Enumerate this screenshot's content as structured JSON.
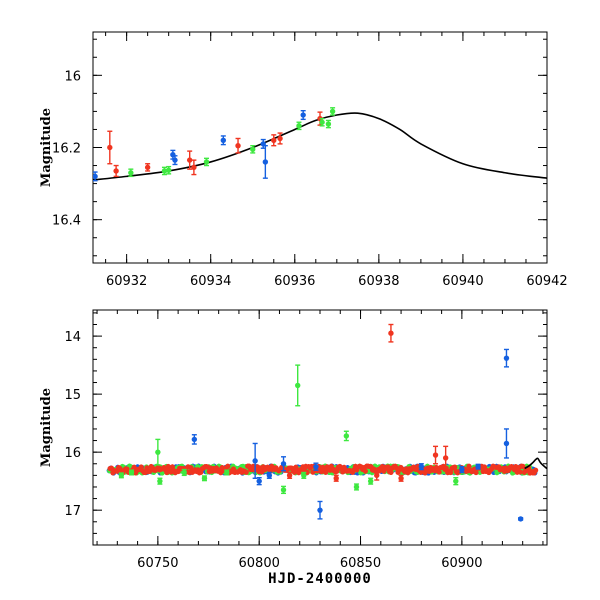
{
  "chart_data": [
    {
      "type": "scatter",
      "title": "",
      "xlabel": "",
      "ylabel": "Magnitude",
      "xlim": [
        60931.2,
        60942
      ],
      "ylim": [
        16.52,
        15.88
      ],
      "y_inverted": true,
      "xticks": [
        60932,
        60934,
        60936,
        60938,
        60940,
        60942
      ],
      "xtick_labels": [
        "60932",
        "60934",
        "60936",
        "60938",
        "60940",
        "60942"
      ],
      "yticks": [
        16,
        16.2,
        16.4
      ],
      "ytick_labels": [
        "16",
        "16.2",
        "16.4"
      ],
      "grid": false,
      "series": [
        {
          "color": "#1560e0",
          "points": [
            {
              "x": 60931.25,
              "y": 16.28,
              "err": 0.012
            },
            {
              "x": 60933.1,
              "y": 16.22,
              "err": 0.012
            },
            {
              "x": 60933.15,
              "y": 16.235,
              "err": 0.012
            },
            {
              "x": 60934.3,
              "y": 16.18,
              "err": 0.012
            },
            {
              "x": 60935.25,
              "y": 16.19,
              "err": 0.012
            },
            {
              "x": 60935.3,
              "y": 16.24,
              "err": 0.045
            },
            {
              "x": 60936.2,
              "y": 16.11,
              "err": 0.012
            }
          ]
        },
        {
          "color": "#f03520",
          "points": [
            {
              "x": 60931.6,
              "y": 16.2,
              "err": 0.045
            },
            {
              "x": 60931.75,
              "y": 16.265,
              "err": 0.015
            },
            {
              "x": 60932.5,
              "y": 16.255,
              "err": 0.01
            },
            {
              "x": 60933.5,
              "y": 16.235,
              "err": 0.025
            },
            {
              "x": 60933.6,
              "y": 16.255,
              "err": 0.02
            },
            {
              "x": 60934.65,
              "y": 16.195,
              "err": 0.02
            },
            {
              "x": 60935.5,
              "y": 16.18,
              "err": 0.015
            },
            {
              "x": 60935.65,
              "y": 16.175,
              "err": 0.015
            },
            {
              "x": 60936.6,
              "y": 16.12,
              "err": 0.018
            }
          ]
        },
        {
          "color": "#3ee840",
          "points": [
            {
              "x": 60932.1,
              "y": 16.27,
              "err": 0.01
            },
            {
              "x": 60932.9,
              "y": 16.265,
              "err": 0.01
            },
            {
              "x": 60933.0,
              "y": 16.263,
              "err": 0.01
            },
            {
              "x": 60933.9,
              "y": 16.24,
              "err": 0.01
            },
            {
              "x": 60935.0,
              "y": 16.205,
              "err": 0.01
            },
            {
              "x": 60936.1,
              "y": 16.14,
              "err": 0.01
            },
            {
              "x": 60936.65,
              "y": 16.13,
              "err": 0.01
            },
            {
              "x": 60936.8,
              "y": 16.135,
              "err": 0.01
            },
            {
              "x": 60936.9,
              "y": 16.1,
              "err": 0.01
            }
          ]
        }
      ],
      "model_curve": {
        "color": "#000000",
        "x": [
          60931.2,
          60932,
          60933,
          60934,
          60935,
          60936,
          60936.5,
          60937,
          60937.5,
          60938,
          60938.5,
          60939,
          60940,
          60941,
          60942
        ],
        "y": [
          16.29,
          16.28,
          16.265,
          16.24,
          16.2,
          16.15,
          16.125,
          16.11,
          16.105,
          16.12,
          16.15,
          16.19,
          16.245,
          16.27,
          16.285
        ]
      }
    },
    {
      "type": "scatter",
      "title": "",
      "xlabel": "HJD-2400000",
      "ylabel": "Magnitude",
      "xlim": [
        60718,
        60942
      ],
      "ylim": [
        17.6,
        13.55
      ],
      "y_inverted": true,
      "xticks": [
        60750,
        60800,
        60850,
        60900
      ],
      "xtick_labels": [
        "60750",
        "60800",
        "60850",
        "60900"
      ],
      "yticks": [
        14,
        15,
        16,
        17
      ],
      "ytick_labels": [
        "14",
        "15",
        "16",
        "17"
      ],
      "grid": false,
      "series": [
        {
          "color": "#1560e0",
          "points": [
            {
              "x": 60768,
              "y": 15.78,
              "err": 0.08
            },
            {
              "x": 60798,
              "y": 16.15,
              "err": 0.3
            },
            {
              "x": 60800,
              "y": 16.5,
              "err": 0.06
            },
            {
              "x": 60805,
              "y": 16.4,
              "err": 0.05
            },
            {
              "x": 60812,
              "y": 16.2,
              "err": 0.12
            },
            {
              "x": 60828,
              "y": 16.25,
              "err": 0.06
            },
            {
              "x": 60830,
              "y": 17.0,
              "err": 0.15
            },
            {
              "x": 60880,
              "y": 16.25,
              "err": 0.05
            },
            {
              "x": 60900,
              "y": 16.3,
              "err": 0.05
            },
            {
              "x": 60908,
              "y": 16.25,
              "err": 0.04
            },
            {
              "x": 60922,
              "y": 14.38,
              "err": 0.15
            },
            {
              "x": 60922,
              "y": 15.85,
              "err": 0.25
            },
            {
              "x": 60929,
              "y": 17.15,
              "err": 0.02
            }
          ]
        },
        {
          "color": "#f03520",
          "points": [
            {
              "x": 60865,
              "y": 13.95,
              "err": 0.15
            },
            {
              "x": 60887,
              "y": 16.05,
              "err": 0.15
            },
            {
              "x": 60892,
              "y": 16.1,
              "err": 0.2
            },
            {
              "x": 60858,
              "y": 16.4,
              "err": 0.08
            },
            {
              "x": 60870,
              "y": 16.45,
              "err": 0.05
            },
            {
              "x": 60815,
              "y": 16.4,
              "err": 0.05
            },
            {
              "x": 60838,
              "y": 16.45,
              "err": 0.05
            }
          ]
        },
        {
          "color": "#3ee840",
          "points": [
            {
              "x": 60750,
              "y": 16.0,
              "err": 0.22
            },
            {
              "x": 60751,
              "y": 16.5,
              "err": 0.05
            },
            {
              "x": 60763,
              "y": 16.35,
              "err": 0.05
            },
            {
              "x": 60773,
              "y": 16.45,
              "err": 0.04
            },
            {
              "x": 60784,
              "y": 16.35,
              "err": 0.04
            },
            {
              "x": 60812,
              "y": 16.65,
              "err": 0.06
            },
            {
              "x": 60819,
              "y": 14.85,
              "err": 0.35
            },
            {
              "x": 60822,
              "y": 16.4,
              "err": 0.05
            },
            {
              "x": 60843,
              "y": 15.72,
              "err": 0.08
            },
            {
              "x": 60848,
              "y": 16.6,
              "err": 0.05
            },
            {
              "x": 60855,
              "y": 16.5,
              "err": 0.05
            },
            {
              "x": 60897,
              "y": 16.5,
              "err": 0.06
            },
            {
              "x": 60732,
              "y": 16.4,
              "err": 0.04
            },
            {
              "x": 60737,
              "y": 16.35,
              "err": 0.04
            }
          ]
        }
      ],
      "dense_band": {
        "x_range": [
          60726,
          60936
        ],
        "y_center": 16.3,
        "y_scatter": 0.06
      },
      "model_curve": {
        "color": "#000000",
        "x": [
          60931,
          60933,
          60935,
          60936.5,
          60937.5,
          60939,
          60942
        ],
        "y": [
          16.28,
          16.24,
          16.18,
          16.125,
          16.11,
          16.19,
          16.285
        ]
      }
    }
  ]
}
